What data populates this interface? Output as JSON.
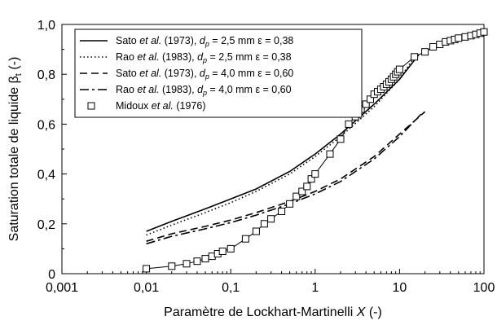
{
  "chart_data": {
    "type": "line",
    "xscale": "log",
    "xlim": [
      0.001,
      100
    ],
    "ylim": [
      0,
      1.0
    ],
    "xticks": [
      "0,001",
      "0,01",
      "0,1",
      "1",
      "10",
      "100"
    ],
    "yticks": [
      "0",
      "0,2",
      "0,4",
      "0,6",
      "0,8",
      "1,0"
    ],
    "xlabel": {
      "prefix": "Paramètre de Lockhart-Martinelli ",
      "var": "X",
      "suffix": " (-)"
    },
    "ylabel": {
      "prefix": "Saturation totale de liquide ",
      "var": "β",
      "sub": "t",
      "suffix": " (-)"
    },
    "grid": false,
    "legend_position": "top-left",
    "series": [
      {
        "label": {
          "author": "Sato ",
          "etal": "et al.",
          "rest": " (1973), ",
          "dvar": "d",
          "dsub": "p",
          "params": " = 2,5 mm ε = 0,38"
        },
        "style": "solid",
        "color": "#000000",
        "x": [
          0.01,
          0.02,
          0.05,
          0.1,
          0.2,
          0.5,
          1,
          2,
          5,
          10,
          17
        ],
        "y": [
          0.17,
          0.21,
          0.26,
          0.3,
          0.34,
          0.41,
          0.48,
          0.56,
          0.68,
          0.78,
          0.88
        ]
      },
      {
        "label": {
          "author": "Rao ",
          "etal": "et al.",
          "rest": " (1983), ",
          "dvar": "d",
          "dsub": "p",
          "params": " = 2,5 mm ε = 0,38"
        },
        "style": "dotted",
        "color": "#000000",
        "x": [
          0.01,
          0.02,
          0.05,
          0.1,
          0.2,
          0.5,
          1,
          2,
          5,
          10,
          15
        ],
        "y": [
          0.155,
          0.195,
          0.245,
          0.285,
          0.33,
          0.4,
          0.47,
          0.55,
          0.67,
          0.78,
          0.87
        ]
      },
      {
        "label": {
          "author": "Sato ",
          "etal": "et al.",
          "rest": " (1973), ",
          "dvar": "d",
          "dsub": "p",
          "params": " = 4,0 mm ε = 0,60"
        },
        "style": "dashed",
        "color": "#000000",
        "x": [
          0.01,
          0.02,
          0.05,
          0.1,
          0.2,
          0.5,
          1,
          2,
          5,
          10,
          20
        ],
        "y": [
          0.13,
          0.16,
          0.19,
          0.215,
          0.245,
          0.29,
          0.33,
          0.38,
          0.47,
          0.56,
          0.65
        ]
      },
      {
        "label": {
          "author": "Rao ",
          "etal": "et al.",
          "rest": " (1983), ",
          "dvar": "d",
          "dsub": "p",
          "params": " = 4,0 mm ε = 0,60"
        },
        "style": "dashdot",
        "color": "#000000",
        "x": [
          0.01,
          0.02,
          0.05,
          0.1,
          0.2,
          0.5,
          1,
          2,
          5,
          10,
          18
        ],
        "y": [
          0.12,
          0.15,
          0.18,
          0.205,
          0.235,
          0.28,
          0.32,
          0.37,
          0.46,
          0.55,
          0.64
        ]
      },
      {
        "label": {
          "author": "Midoux ",
          "etal": "et al.",
          "rest": " (1976)",
          "dvar": "",
          "dsub": "",
          "params": ""
        },
        "style": "markers-line",
        "marker": "square",
        "color": "#000000",
        "x": [
          0.01,
          0.02,
          0.03,
          0.04,
          0.05,
          0.06,
          0.07,
          0.08,
          0.1,
          0.15,
          0.2,
          0.25,
          0.3,
          0.4,
          0.5,
          0.6,
          0.7,
          0.8,
          0.9,
          1.0,
          1.5,
          2,
          2.5,
          3,
          3.5,
          4,
          4.5,
          5,
          5.5,
          6,
          6.5,
          7,
          7.5,
          8,
          8.5,
          9,
          9.5,
          10,
          15,
          20,
          25,
          30,
          35,
          40,
          45,
          50,
          60,
          70,
          80,
          90,
          100
        ],
        "y": [
          0.02,
          0.03,
          0.04,
          0.05,
          0.06,
          0.07,
          0.08,
          0.09,
          0.1,
          0.14,
          0.17,
          0.2,
          0.22,
          0.25,
          0.28,
          0.31,
          0.33,
          0.35,
          0.38,
          0.4,
          0.48,
          0.54,
          0.6,
          0.63,
          0.66,
          0.68,
          0.7,
          0.72,
          0.73,
          0.74,
          0.75,
          0.76,
          0.77,
          0.78,
          0.79,
          0.8,
          0.81,
          0.82,
          0.87,
          0.89,
          0.91,
          0.92,
          0.93,
          0.935,
          0.94,
          0.945,
          0.95,
          0.955,
          0.96,
          0.965,
          0.97
        ]
      }
    ]
  }
}
